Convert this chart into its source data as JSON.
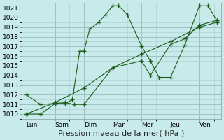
{
  "bg_color": "#c8eaea",
  "grid_color_major": "#aacccc",
  "grid_color_minor": "#bbdddd",
  "line_color": "#1a5c1a",
  "xlabel": "Pression niveau de la mer( hPa )",
  "xtick_labels": [
    "Lun",
    "Sam",
    "Dim",
    "Mar",
    "Mer",
    "Jeu",
    "Ven"
  ],
  "ylim": [
    1009.5,
    1021.5
  ],
  "yticks": [
    1010,
    1011,
    1012,
    1013,
    1014,
    1015,
    1016,
    1017,
    1018,
    1019,
    1020,
    1021
  ],
  "line1_x": [
    0.0,
    0.5,
    1.0,
    1.35,
    1.6,
    1.85,
    2.0,
    2.2,
    2.5,
    2.75,
    3.0,
    3.2,
    3.5,
    4.0,
    4.3,
    4.6,
    5.0,
    5.5,
    6.0,
    6.3,
    6.6
  ],
  "line1_y": [
    1012.0,
    1011.0,
    1011.1,
    1011.1,
    1011.5,
    1016.5,
    1016.5,
    1018.8,
    1019.5,
    1020.3,
    1021.2,
    1021.2,
    1020.3,
    1017.0,
    1015.5,
    1013.8,
    1013.8,
    1017.2,
    1021.2,
    1021.2,
    1019.7
  ],
  "line2_x": [
    0.0,
    0.5,
    1.0,
    1.35,
    1.65,
    2.0,
    3.0,
    4.0,
    4.3,
    5.0,
    5.5,
    6.0,
    6.6
  ],
  "line2_y": [
    1010.0,
    1010.0,
    1011.1,
    1011.2,
    1011.0,
    1011.0,
    1014.8,
    1015.5,
    1014.0,
    1017.2,
    1017.8,
    1019.2,
    1019.7
  ],
  "line3_x": [
    0.0,
    1.0,
    2.0,
    3.0,
    4.0,
    5.0,
    6.0,
    6.6
  ],
  "line3_y": [
    1010.0,
    1011.2,
    1012.7,
    1014.8,
    1016.2,
    1017.5,
    1019.0,
    1019.5
  ],
  "tick_fontsize": 6.5,
  "xlabel_fontsize": 8.0
}
